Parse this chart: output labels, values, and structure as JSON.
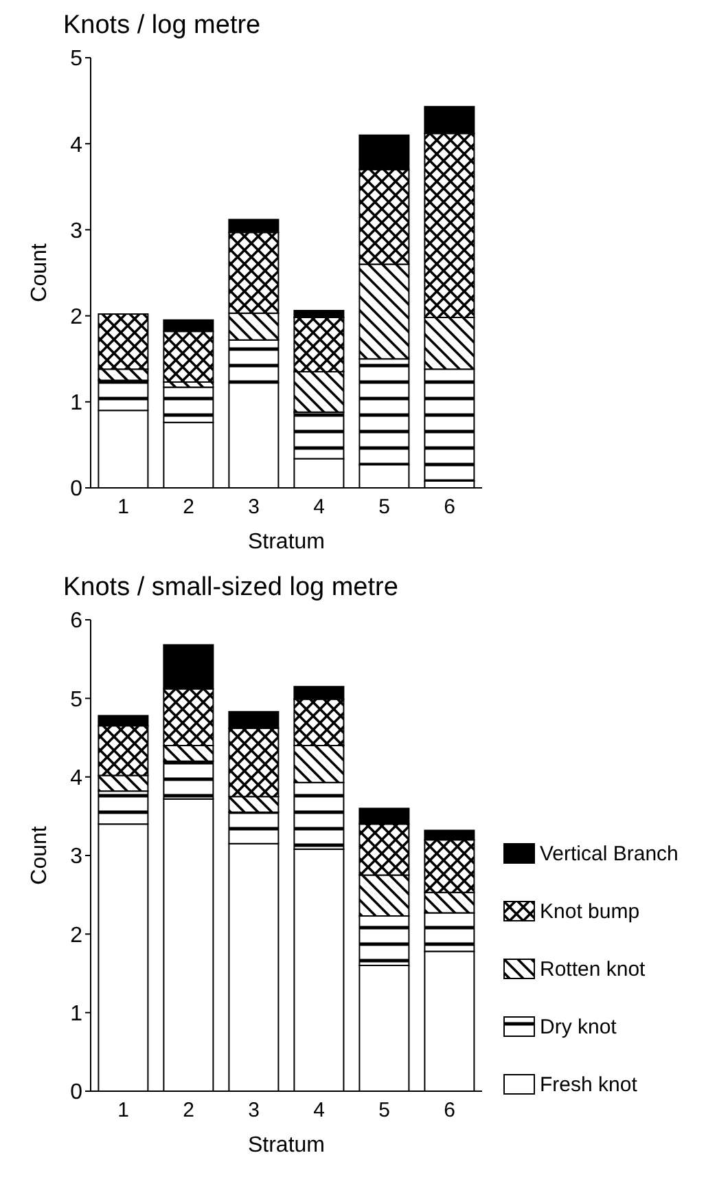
{
  "chart_data": [
    {
      "type": "bar",
      "title": "Knots / log metre",
      "xlabel": "Stratum",
      "ylabel": "Count",
      "categories": [
        "1",
        "2",
        "3",
        "4",
        "5",
        "6"
      ],
      "stacked": true,
      "ylim": [
        0,
        5
      ],
      "yticks": [
        0,
        1,
        2,
        3,
        4,
        5
      ],
      "grid": false,
      "legend": false,
      "series": [
        {
          "color": "#ffffff",
          "values": [
            0.9,
            0.76,
            1.22,
            0.34,
            0.27,
            0.08
          ]
        },
        {
          "color": "#000000",
          "values": [
            0.35,
            0.41,
            0.5,
            0.54,
            1.23,
            1.3
          ]
        },
        {
          "color": "#000000",
          "values": [
            0.13,
            0.06,
            0.31,
            0.47,
            1.1,
            0.6
          ]
        },
        {
          "color": "#000000",
          "values": [
            0.64,
            0.59,
            0.94,
            0.63,
            1.1,
            2.14
          ]
        },
        {
          "color": "#000000",
          "values": [
            0,
            0.13,
            0.15,
            0.08,
            0.4,
            0.31
          ]
        }
      ]
    },
    {
      "type": "bar",
      "title": "Knots / small-sized log metre",
      "xlabel": "Stratum",
      "ylabel": "Count",
      "categories": [
        "1",
        "2",
        "3",
        "4",
        "5",
        "6"
      ],
      "stacked": true,
      "ylim": [
        0,
        6
      ],
      "yticks": [
        0,
        1,
        2,
        3,
        4,
        5,
        6
      ],
      "grid": false,
      "legend": "right",
      "series": [
        {
          "name": "Fresh knot",
          "color": "#ffffff",
          "values": [
            3.4,
            3.72,
            3.15,
            3.08,
            1.6,
            1.78
          ]
        },
        {
          "name": "Dry knot",
          "color": "#000000",
          "values": [
            0.42,
            0.48,
            0.4,
            0.85,
            0.63,
            0.49
          ]
        },
        {
          "name": "Rotten knot",
          "color": "#000000",
          "values": [
            0.2,
            0.2,
            0.2,
            0.47,
            0.52,
            0.26
          ]
        },
        {
          "name": "Knot bump",
          "color": "#000000",
          "values": [
            0.63,
            0.72,
            0.87,
            0.59,
            0.65,
            0.67
          ]
        },
        {
          "name": "Vertical Branch",
          "color": "#000000",
          "values": [
            0.13,
            0.56,
            0.21,
            0.16,
            0.2,
            0.12
          ]
        }
      ]
    }
  ]
}
